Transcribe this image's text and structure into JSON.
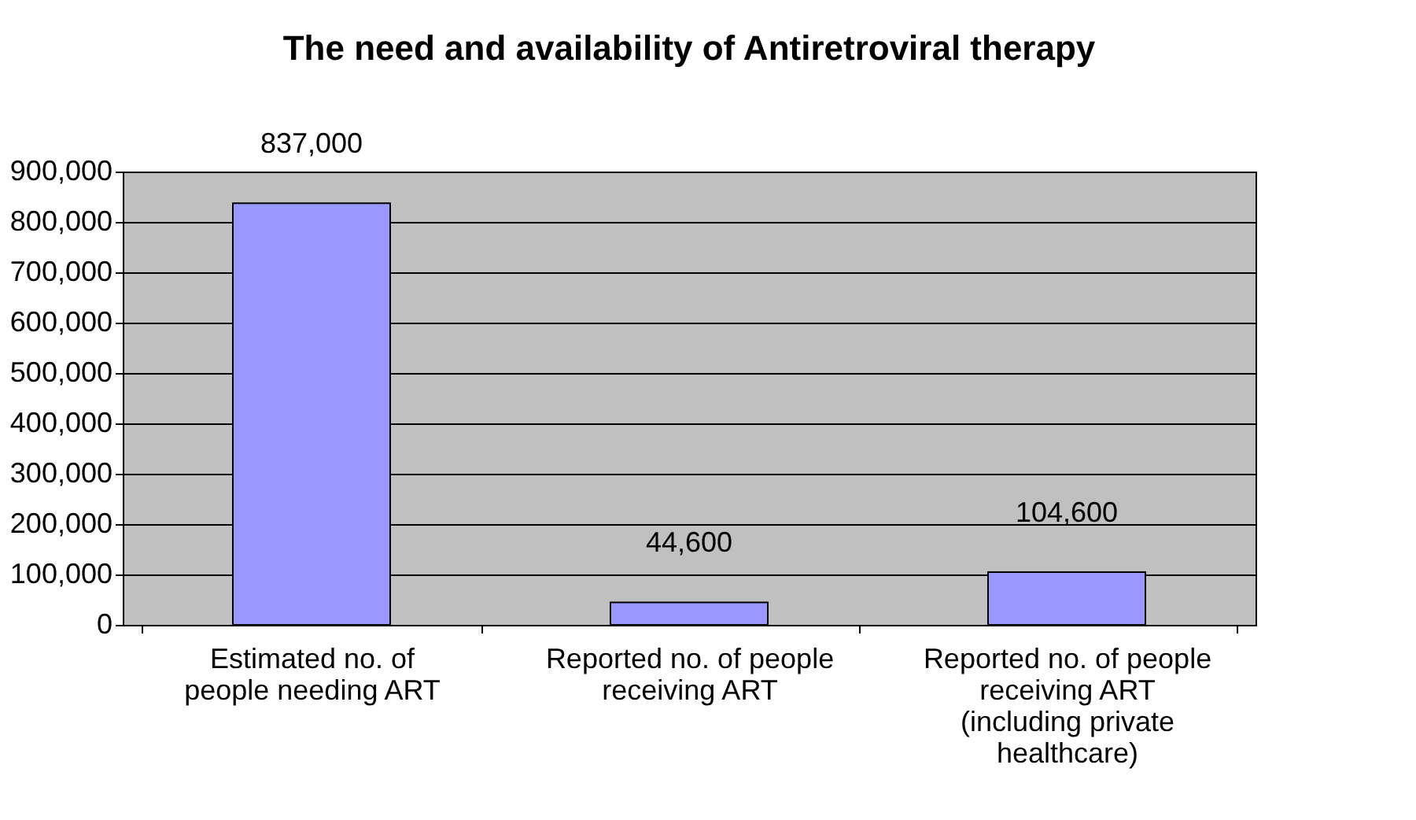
{
  "chart_data": {
    "type": "bar",
    "title": "The need and availability of Antiretroviral therapy",
    "categories": [
      "Estimated no. of\npeople needing ART",
      "Reported no. of people\nreceiving ART",
      "Reported no. of people\nreceiving ART\n(including private\nhealthcare)"
    ],
    "values": [
      837000,
      44600,
      104600
    ],
    "value_labels": [
      "837,000",
      "44,600",
      "104,600"
    ],
    "color": "#9999ff",
    "ylim": [
      0,
      900000
    ],
    "yticks": [
      0,
      {
        "value": 100000,
        "label": "100,000"
      },
      {
        "value": 200000,
        "label": "200,000"
      },
      {
        "value": 300000,
        "label": "300,000"
      },
      {
        "value": 400000,
        "label": "400,000"
      },
      {
        "value": 500000,
        "label": "500,000"
      },
      {
        "value": 600000,
        "label": "600,000"
      },
      {
        "value": 700000,
        "label": "700,000"
      },
      {
        "value": 800000,
        "label": "800,000"
      },
      {
        "value": 900000,
        "label": "900,000"
      }
    ],
    "grid": "y"
  }
}
